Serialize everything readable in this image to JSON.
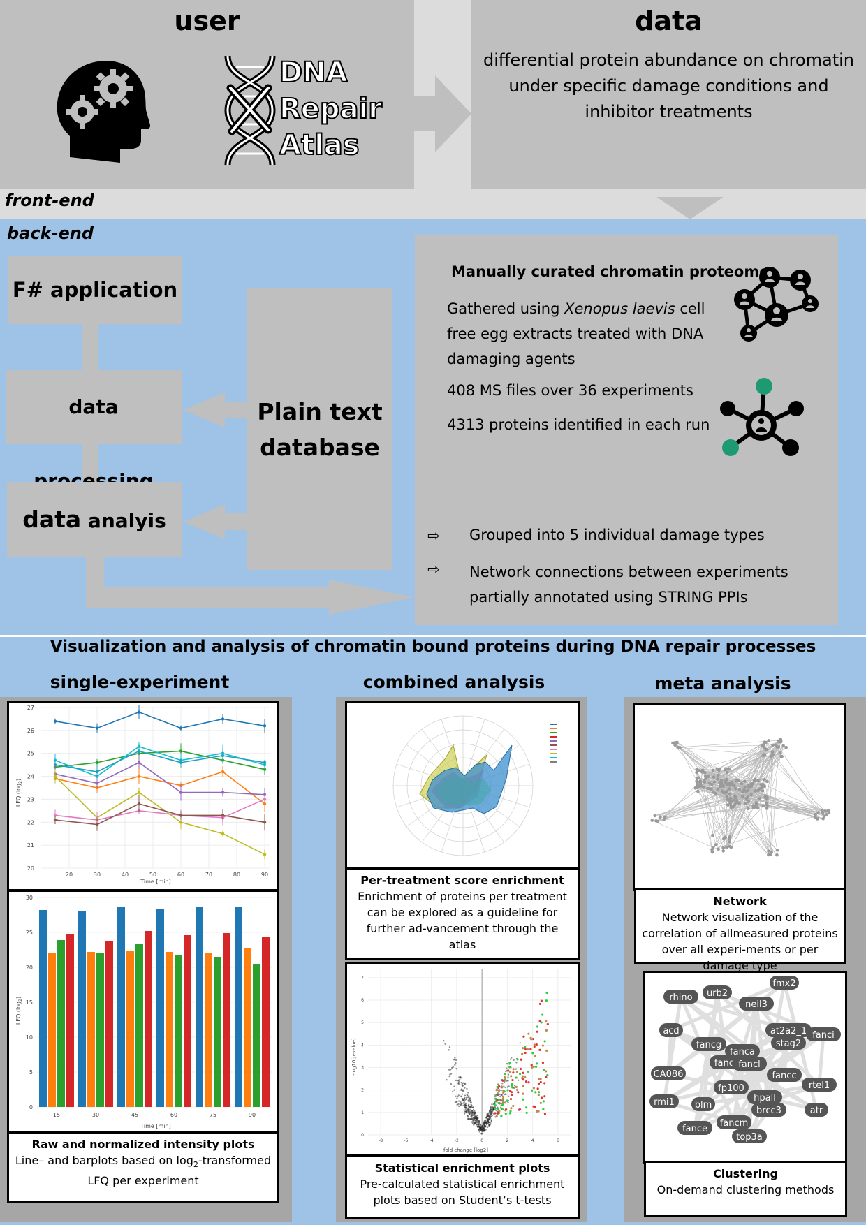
{
  "user": {
    "title": "user",
    "logo_words": [
      "DNA",
      "Repair",
      "Atlas"
    ]
  },
  "data_box": {
    "title": "data",
    "description": "differential protein abundance on chromatin under specific damage conditions and inhibitor treatments"
  },
  "layers": {
    "front_end": "front-end",
    "back_end": "back-end"
  },
  "backend": {
    "fsharp": "F# application",
    "processing": "data processing",
    "analysis_bold": "data",
    "analysis_rest": " analyis",
    "database_line1": "Plain text",
    "database_line2": "database"
  },
  "proteome": {
    "title": "Manually curated chromatin proteome",
    "gathered_prefix": "Gathered using ",
    "gathered_species": "Xenopus laevis",
    "gathered_suffix": " cell free egg extracts treated with DNA damaging agents",
    "ms_files": "408 MS files over 36 experiments",
    "proteins": "4313 proteins identified in each run",
    "bullet_symbol": "⇨",
    "bullets": [
      "Grouped into 5 individual damage types",
      "Network connections between experiments partially annotated using STRING PPIs"
    ]
  },
  "visualization": {
    "heading": "Visualization and analysis of chromatin bound proteins during DNA repair processes",
    "columns": [
      "single-experiment",
      "combined analysis",
      "meta analysis"
    ]
  },
  "captions": {
    "raw": {
      "title": "Raw and normalized intensity plots",
      "text_a": "Line– and barplots based on log",
      "text_sub": "2",
      "text_b": "-transformed LFQ per experiment"
    },
    "per_treatment": {
      "title": "Per-treatment score enrichment",
      "text": "Enrichment of proteins per treatment can be explored as a guideline for further ad-vancement through the atlas"
    },
    "statistical": {
      "title": "Statistical enrichment plots",
      "text": "Pre-calculated statistical enrichment plots based on Student‘s t-tests"
    },
    "network": {
      "title": "Network",
      "text": "Network visualization of the correlation of allmeasured proteins over all experi-ments or per damage type"
    },
    "clustering": {
      "title": "Clustering",
      "text": "On-demand clustering methods"
    }
  },
  "line_plot": {
    "x_ticks": [
      "20",
      "30",
      "40",
      "50",
      "60",
      "70",
      "80",
      "90"
    ],
    "y_ticks": [
      "20",
      "21",
      "22",
      "23",
      "24",
      "25",
      "26",
      "27"
    ],
    "xlabel": "Time [min]",
    "ylabel": "LFQ (log",
    "ylabel_sub": "2",
    "ylabel_end": ")"
  },
  "bar_plot": {
    "x_ticks": [
      "15",
      "30",
      "45",
      "60",
      "75",
      "90"
    ],
    "y_ticks": [
      "0",
      "5",
      "10",
      "15",
      "20",
      "25",
      "30"
    ],
    "xlabel": "Time [min]",
    "ylabel": "LFQ (log",
    "ylabel_sub": "2",
    "ylabel_end": ")"
  },
  "volcano_plot": {
    "x_ticks": [
      "-8",
      "-6",
      "-4",
      "-2",
      "0",
      "2",
      "4",
      "6"
    ],
    "y_ticks": [
      "0",
      "1",
      "2",
      "3",
      "4",
      "5",
      "6",
      "7"
    ],
    "xlabel": "fold change [log2]",
    "ylabel": "-log10(p-value)"
  },
  "cluster_labels": [
    "fmx2",
    "rhino",
    "urb2",
    "neil3",
    "acd",
    "at2a2_1",
    "fanci",
    "stag2",
    "fancg",
    "fanca",
    "fancb",
    "fancl",
    "CA086",
    "fancc",
    "rtel1",
    "fp100",
    "hpall",
    "rmi1",
    "blm",
    "brcc3",
    "atr",
    "fancm",
    "fance",
    "top3a"
  ],
  "chart_data": [
    {
      "type": "line",
      "x": [
        15,
        30,
        45,
        60,
        75,
        90
      ],
      "xlabel": "Time [min]",
      "ylabel": "LFQ (log2)",
      "xlim": [
        10,
        92
      ],
      "ylim": [
        20,
        27
      ],
      "series": [
        {
          "color": "#1f77b4",
          "values": [
            26.4,
            26.1,
            26.8,
            26.1,
            26.5,
            26.2
          ]
        },
        {
          "color": "#2ca02c",
          "values": [
            24.4,
            24.6,
            25.0,
            25.1,
            24.7,
            24.3
          ]
        },
        {
          "color": "#17becf",
          "values": [
            24.7,
            24.0,
            25.3,
            24.7,
            25.0,
            24.5
          ]
        },
        {
          "color": "#1f9fbf",
          "values": [
            24.5,
            24.2,
            25.1,
            24.6,
            24.9,
            24.6
          ]
        },
        {
          "color": "#ff7f0e",
          "values": [
            23.9,
            23.5,
            24.0,
            23.6,
            24.2,
            22.8
          ]
        },
        {
          "color": "#9467bd",
          "values": [
            24.1,
            23.7,
            24.6,
            23.3,
            23.3,
            23.2
          ]
        },
        {
          "color": "#bcbd22",
          "values": [
            24.0,
            22.2,
            23.3,
            22.0,
            21.5,
            20.6
          ]
        },
        {
          "color": "#e377c2",
          "values": [
            22.3,
            22.1,
            22.5,
            22.3,
            22.2,
            23.0
          ]
        },
        {
          "color": "#8c564b",
          "values": [
            22.1,
            21.9,
            22.8,
            22.3,
            22.3,
            22.0
          ]
        }
      ]
    },
    {
      "type": "bar",
      "categories": [
        "15",
        "30",
        "45",
        "60",
        "75",
        "90"
      ],
      "xlabel": "Time [min]",
      "ylabel": "LFQ (log2)",
      "ylim": [
        0,
        30
      ],
      "series": [
        {
          "color": "#1f77b4",
          "values": [
            28.2,
            28.1,
            28.7,
            28.4,
            28.7,
            28.7
          ]
        },
        {
          "color": "#ff7f0e",
          "values": [
            22.0,
            22.2,
            22.3,
            22.2,
            22.1,
            22.7
          ]
        },
        {
          "color": "#2ca02c",
          "values": [
            23.9,
            22.0,
            23.3,
            21.8,
            21.5,
            20.5
          ]
        },
        {
          "color": "#d62728",
          "values": [
            24.7,
            23.8,
            25.2,
            24.6,
            24.9,
            24.4
          ]
        }
      ]
    }
  ]
}
